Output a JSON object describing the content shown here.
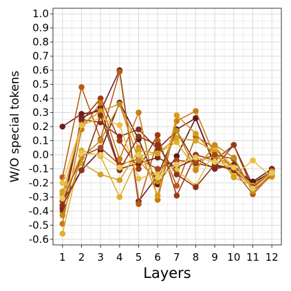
{
  "chart_data": {
    "type": "line",
    "xlabel": "Layers",
    "ylabel": "W/O special tokens",
    "x": [
      1,
      2,
      3,
      4,
      5,
      6,
      7,
      8,
      9,
      10,
      11,
      12
    ],
    "xlim": [
      0.5,
      12.5
    ],
    "ylim": [
      -0.64,
      1.04
    ],
    "yticks": [
      1.0,
      0.9,
      0.8,
      0.7,
      0.6,
      0.5,
      0.4,
      0.3,
      0.2,
      0.1,
      0.0,
      -0.1,
      -0.2,
      -0.3,
      -0.4,
      -0.5,
      -0.6
    ],
    "ytick_labels": [
      "1.0",
      "0.9",
      "0.8",
      "0.7",
      "0.6",
      "0.5",
      "0.4",
      "0.3",
      "0.2",
      "0.1",
      "0.0",
      "-0.1",
      "-0.2",
      "-0.3",
      "-0.4",
      "-0.5",
      "-0.6"
    ],
    "xtick_labels": [
      "1",
      "2",
      "3",
      "4",
      "5",
      "6",
      "7",
      "8",
      "9",
      "10",
      "11",
      "12"
    ],
    "grid": true,
    "legend": "none",
    "series": [
      {
        "color": "#6b1f1f",
        "values": [
          0.2,
          0.29,
          0.31,
          0.6,
          -0.33,
          -0.15,
          0.18,
          0.26,
          -0.07,
          -0.1,
          -0.2,
          -0.12
        ]
      },
      {
        "color": "#8b2a1a",
        "values": [
          -0.36,
          0.25,
          0.23,
          0.13,
          0.18,
          0.04,
          0.17,
          -0.06,
          -0.09,
          0.07,
          -0.22,
          -0.11
        ]
      },
      {
        "color": "#5a1a1a",
        "values": [
          -0.33,
          -0.11,
          0.03,
          0.37,
          0.11,
          -0.21,
          -0.01,
          0.26,
          -0.08,
          -0.1,
          -0.19,
          -0.1
        ]
      },
      {
        "color": "#9e3a14",
        "values": [
          -0.4,
          0.24,
          0.4,
          0.1,
          -0.1,
          0.14,
          -0.29,
          0.0,
          -0.04,
          0.07,
          -0.25,
          -0.11
        ]
      },
      {
        "color": "#b85c14",
        "values": [
          -0.16,
          0.48,
          0.11,
          0.59,
          -0.35,
          0.1,
          -0.22,
          0.13,
          0.05,
          -0.11,
          -0.28,
          -0.14
        ]
      },
      {
        "color": "#c97a12",
        "values": [
          -0.49,
          0.18,
          0.37,
          -0.03,
          0.3,
          -0.32,
          0.24,
          0.31,
          -0.01,
          -0.08,
          -0.22,
          -0.14
        ]
      },
      {
        "color": "#7a2a1a",
        "values": [
          -0.38,
          0.26,
          0.33,
          -0.1,
          -0.06,
          -0.02,
          -0.09,
          -0.03,
          -0.1,
          -0.07,
          -0.24,
          -0.13
        ]
      },
      {
        "color": "#d89a1a",
        "values": [
          -0.28,
          0.21,
          0.31,
          0.36,
          0.05,
          -0.29,
          0.28,
          0.15,
          -0.01,
          -0.09,
          -0.22,
          -0.12
        ]
      },
      {
        "color": "#e0b12a",
        "values": [
          -0.56,
          0.03,
          -0.01,
          -0.3,
          -0.01,
          0.01,
          0.09,
          -0.1,
          0.06,
          -0.09,
          -0.22,
          -0.14
        ]
      },
      {
        "color": "#e8c040",
        "values": [
          -0.2,
          0.21,
          0.26,
          0.21,
          -0.17,
          -0.13,
          -0.11,
          -0.22,
          0.03,
          -0.15,
          -0.04,
          -0.16
        ]
      },
      {
        "color": "#d4a020",
        "values": [
          -0.26,
          -0.06,
          -0.14,
          -0.18,
          0.03,
          0.01,
          0.12,
          0.1,
          0.02,
          -0.16,
          -0.22,
          -0.14
        ]
      },
      {
        "color": "#a8461a",
        "values": [
          -0.33,
          -0.01,
          0.05,
          -0.07,
          -0.03,
          -0.1,
          -0.04,
          -0.05,
          0.0,
          -0.03,
          -0.26,
          -0.14
        ]
      },
      {
        "color": "#c58a1c",
        "values": [
          -0.43,
          -0.02,
          0.1,
          0.36,
          -0.04,
          -0.19,
          0.17,
          -0.11,
          0.07,
          -0.02,
          -0.26,
          -0.15
        ]
      },
      {
        "color": "#8e3416",
        "values": [
          -0.36,
          -0.11,
          0.28,
          -0.11,
          0.13,
          0.07,
          -0.14,
          -0.23,
          -0.07,
          -0.11,
          -0.23,
          -0.13
        ]
      },
      {
        "color": "#e6c85a",
        "values": [
          -0.31,
          0.01,
          0.0,
          -0.09,
          0.0,
          -0.16,
          -0.07,
          -0.02,
          -0.05,
          -0.09,
          -0.24,
          -0.13
        ]
      }
    ]
  }
}
